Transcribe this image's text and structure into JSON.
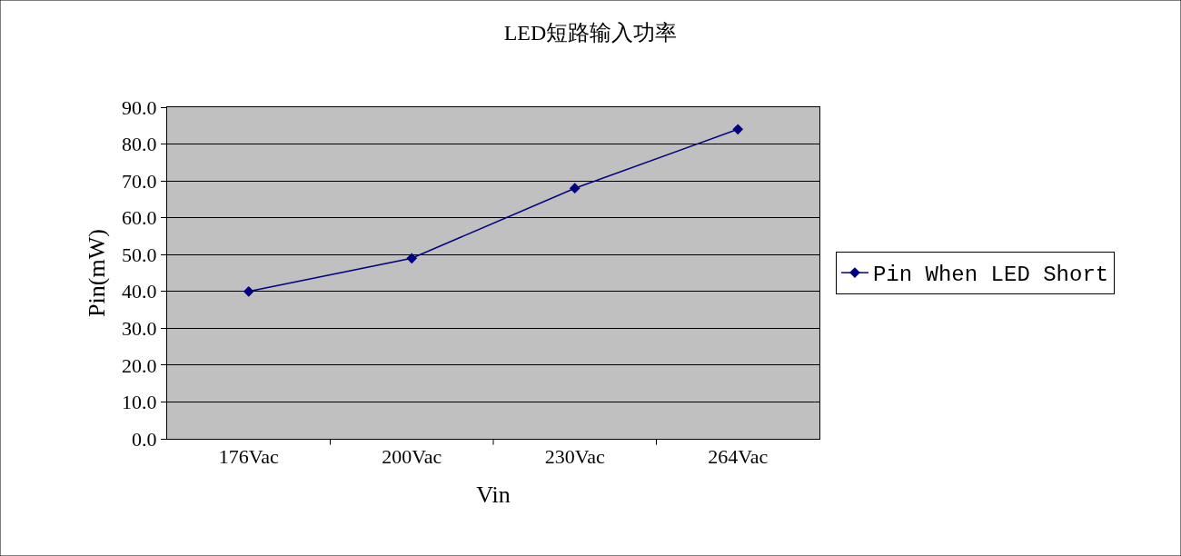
{
  "chart_data": {
    "type": "line",
    "title": "LED短路输入功率",
    "xlabel": "Vin",
    "ylabel": "Pin(mW)",
    "categories": [
      "176Vac",
      "200Vac",
      "230Vac",
      "264Vac"
    ],
    "series": [
      {
        "name": "Pin When LED Short",
        "color": "#000080",
        "values": [
          40,
          49,
          68,
          84
        ]
      }
    ],
    "ylim": [
      0,
      90
    ],
    "yticks": [
      {
        "value": 0,
        "label": "0.0"
      },
      {
        "value": 10,
        "label": "10.0"
      },
      {
        "value": 20,
        "label": "20.0"
      },
      {
        "value": 30,
        "label": "30.0"
      },
      {
        "value": 40,
        "label": "40.0"
      },
      {
        "value": 50,
        "label": "50.0"
      },
      {
        "value": 60,
        "label": "60.0"
      },
      {
        "value": 70,
        "label": "70.0"
      },
      {
        "value": 80,
        "label": "80.0"
      },
      {
        "value": 90,
        "label": "90.0"
      }
    ],
    "grid": "y",
    "legend": "right",
    "marker": "diamond",
    "line_style": "solid"
  }
}
